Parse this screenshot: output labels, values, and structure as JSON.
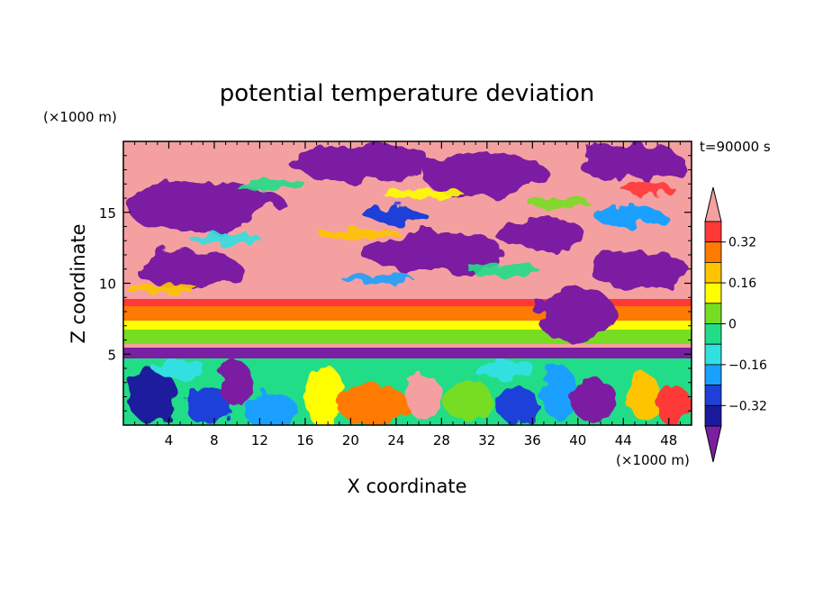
{
  "chart_data": {
    "type": "heatmap",
    "title": "potential temperature deviation",
    "xlabel": "X coordinate",
    "ylabel": "Z coordinate",
    "x_unit_label": "(×1000 m)",
    "y_unit_label": "(×1000 m)",
    "time_label": "t=90000 s",
    "xlim": [
      0,
      50
    ],
    "ylim": [
      0,
      20
    ],
    "x_ticks": [
      4,
      8,
      12,
      16,
      20,
      24,
      28,
      32,
      36,
      40,
      44,
      48
    ],
    "y_ticks": [
      5,
      10,
      15
    ],
    "colorbar": {
      "levels": [
        -0.4,
        -0.32,
        -0.24,
        -0.16,
        -0.08,
        0,
        0.08,
        0.16,
        0.24,
        0.32,
        0.4
      ],
      "tick_labels": [
        "0.32",
        "0.16",
        "0",
        "−0.16",
        "−0.32"
      ],
      "colors": [
        "#7b1fa2",
        "#1a1a9c",
        "#1f3fd8",
        "#1aa0ff",
        "#33e0e0",
        "#22dd88",
        "#77dd22",
        "#ffff00",
        "#ffc400",
        "#ff7a00",
        "#ff3838",
        "#f5a0a0"
      ],
      "extend": "both"
    },
    "regions": [
      {
        "level": "below -0.4",
        "description": "upper layer large cells"
      },
      {
        "level": "above 0.4",
        "description": "upper layer large cells"
      },
      {
        "level": "0.24 to 0.4",
        "description": "stable band near z 7-8"
      },
      {
        "level": "-0.16 to 0.16",
        "description": "lower turbulent layer"
      }
    ]
  }
}
